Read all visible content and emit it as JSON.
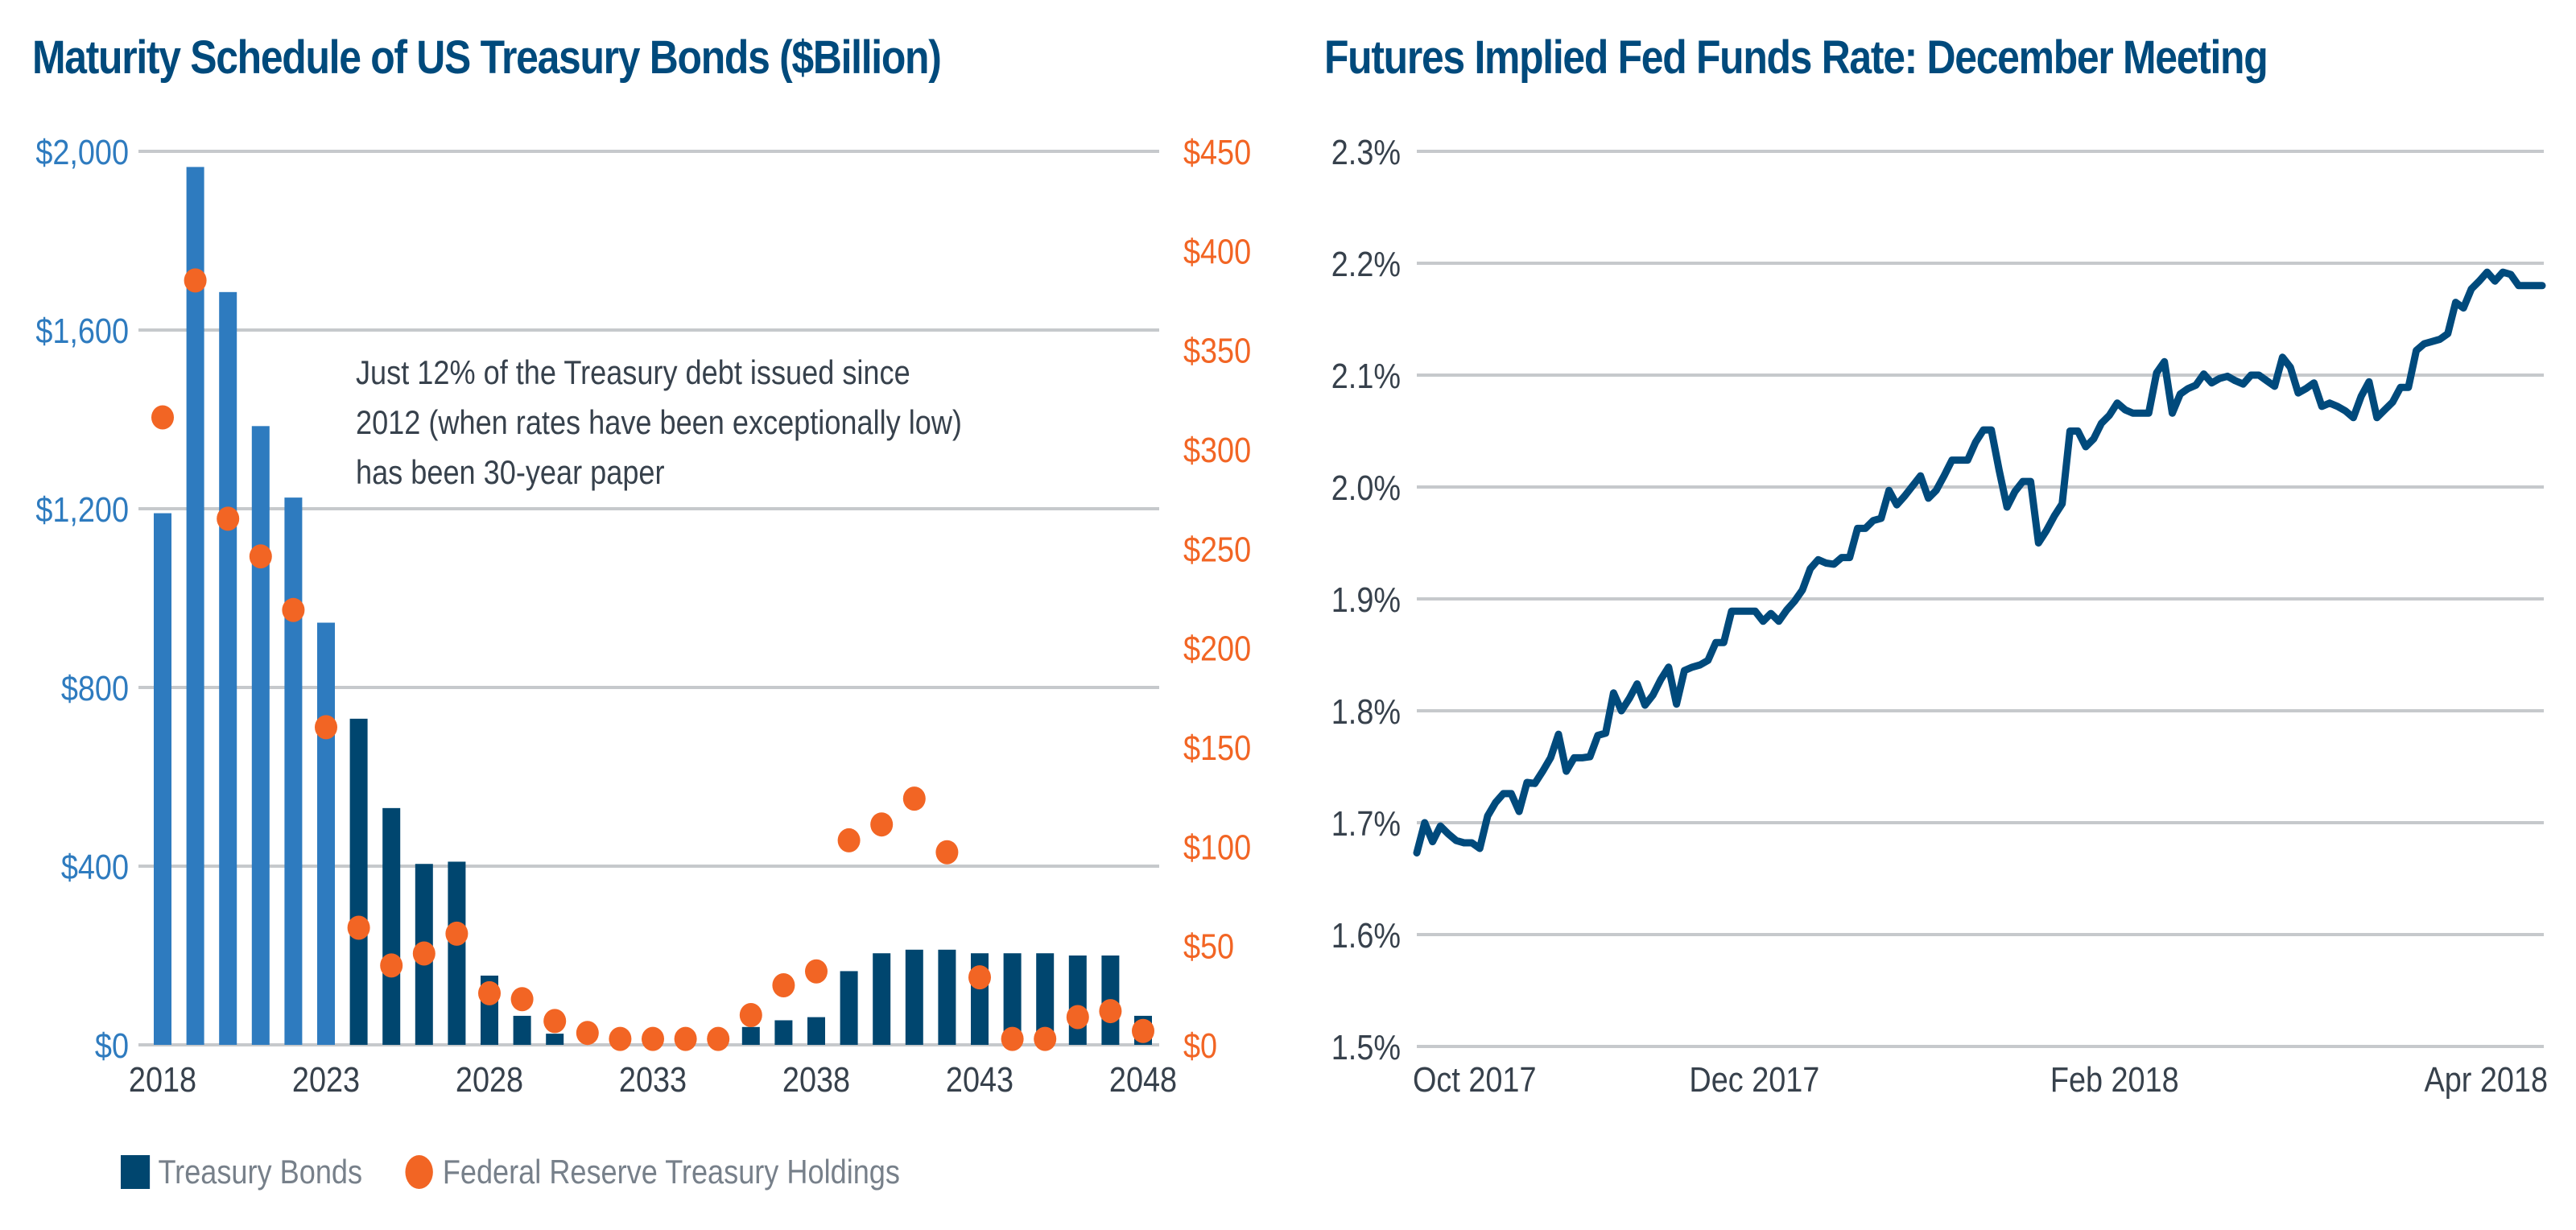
{
  "chart_data": [
    {
      "type": "bar",
      "title": "Maturity Schedule of US Treasury Bonds ($Billion)",
      "xlabel": "",
      "ylabel": "",
      "annotation": "Just 12% of the Treasury debt issued since 2012 (when rates have been exceptionally low) has been 30-year paper",
      "categories": [
        2018,
        2019,
        2020,
        2021,
        2022,
        2023,
        2024,
        2025,
        2026,
        2027,
        2028,
        2029,
        2030,
        2031,
        2032,
        2033,
        2034,
        2035,
        2036,
        2037,
        2038,
        2039,
        2040,
        2041,
        2042,
        2043,
        2044,
        2045,
        2046,
        2047,
        2048
      ],
      "x_tick_labels": [
        "2018",
        "2023",
        "2028",
        "2033",
        "2038",
        "2043",
        "2048"
      ],
      "left_axis": {
        "ylim": [
          0,
          2000
        ],
        "ticks": [
          "$0",
          "$400",
          "$800",
          "$1,200",
          "$1,600",
          "$2,000"
        ],
        "color": "#2e7bbf"
      },
      "right_axis": {
        "ylim": [
          0,
          450
        ],
        "ticks": [
          "$0",
          "$50",
          "$100",
          "$150",
          "$200",
          "$250",
          "$300",
          "$350",
          "$400",
          "$450"
        ],
        "color": "#f26524"
      },
      "grid": true,
      "series": [
        {
          "name": "Treasury Bonds",
          "type": "bar",
          "axis": "left",
          "color": "#00466f",
          "highlight_color": "#2e7bbf",
          "highlight_through": 2023,
          "values": [
            1190,
            1965,
            1685,
            1385,
            1225,
            945,
            730,
            530,
            405,
            410,
            155,
            65,
            25,
            0,
            0,
            0,
            0,
            0,
            40,
            55,
            62,
            165,
            205,
            213,
            213,
            205,
            205,
            205,
            200,
            200,
            65
          ]
        },
        {
          "name": "Federal Reserve Treasury Holdings",
          "type": "scatter",
          "axis": "right",
          "color": "#f26524",
          "values": [
            316,
            385,
            265,
            246,
            219,
            160,
            59,
            40,
            46,
            56,
            26,
            23,
            12,
            6,
            3,
            3,
            3,
            3,
            15,
            30,
            37,
            103,
            111,
            124,
            97,
            34,
            3,
            3,
            14,
            17,
            7
          ]
        }
      ],
      "legend": [
        "Treasury Bonds",
        "Federal Reserve Treasury Holdings"
      ],
      "legend_position": "bottom-left"
    },
    {
      "type": "line",
      "title": "Futures Implied Fed Funds Rate: December Meeting",
      "xlabel": "",
      "ylabel": "",
      "x_tick_labels": [
        "Oct 2017",
        "Dec 2017",
        "Feb 2018",
        "Apr 2018"
      ],
      "x_tick_positions": [
        0,
        0.3,
        0.62,
        0.98
      ],
      "y_tick_labels": [
        "1.5%",
        "1.6%",
        "1.7%",
        "1.8%",
        "1.9%",
        "2.0%",
        "2.1%",
        "2.2%",
        "2.3%"
      ],
      "ylim": [
        1.5,
        2.3
      ],
      "grid": true,
      "series": [
        {
          "name": "Implied Fed Funds Rate",
          "color": "#004a7c",
          "values": [
            1.673,
            1.7,
            1.683,
            1.697,
            1.69,
            1.684,
            1.682,
            1.682,
            1.677,
            1.706,
            1.718,
            1.726,
            1.726,
            1.71,
            1.736,
            1.735,
            1.746,
            1.758,
            1.779,
            1.746,
            1.758,
            1.758,
            1.759,
            1.778,
            1.78,
            1.816,
            1.8,
            1.811,
            1.824,
            1.805,
            1.814,
            1.828,
            1.839,
            1.806,
            1.836,
            1.839,
            1.841,
            1.845,
            1.861,
            1.861,
            1.889,
            1.889,
            1.889,
            1.889,
            1.88,
            1.887,
            1.88,
            1.89,
            1.898,
            1.908,
            1.927,
            1.935,
            1.932,
            1.931,
            1.937,
            1.937,
            1.963,
            1.963,
            1.97,
            1.972,
            1.997,
            1.984,
            1.992,
            2.001,
            2.01,
            1.99,
            1.997,
            2.01,
            2.024,
            2.024,
            2.024,
            2.04,
            2.051,
            2.051,
            2.015,
            1.982,
            1.996,
            2.005,
            2.005,
            1.95,
            1.961,
            1.974,
            1.985,
            2.05,
            2.05,
            2.036,
            2.043,
            2.057,
            2.064,
            2.075,
            2.069,
            2.066,
            2.066,
            2.066,
            2.102,
            2.112,
            2.066,
            2.083,
            2.088,
            2.091,
            2.101,
            2.093,
            2.097,
            2.099,
            2.095,
            2.092,
            2.1,
            2.1,
            2.095,
            2.09,
            2.116,
            2.107,
            2.084,
            2.088,
            2.093,
            2.072,
            2.075,
            2.072,
            2.068,
            2.062,
            2.081,
            2.094,
            2.062,
            2.069,
            2.076,
            2.089,
            2.089,
            2.122,
            2.128,
            2.13,
            2.132,
            2.137,
            2.165,
            2.16,
            2.177,
            2.184,
            2.192,
            2.184,
            2.192,
            2.19,
            2.18,
            2.18,
            2.18,
            2.18
          ]
        }
      ]
    }
  ]
}
